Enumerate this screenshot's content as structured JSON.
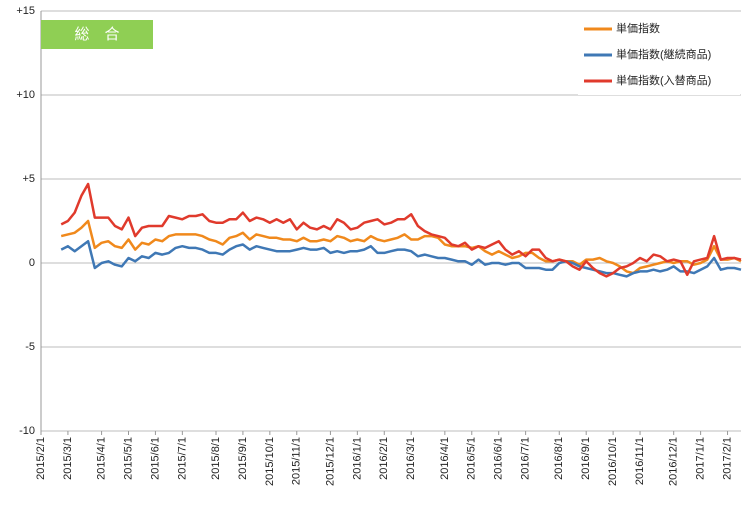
{
  "chart_data": {
    "type": "line",
    "badge": "総　合",
    "categories": [
      "2015/2/1",
      null,
      null,
      null,
      "2015/3/1",
      null,
      null,
      null,
      null,
      "2015/4/1",
      null,
      null,
      null,
      "2015/5/1",
      null,
      null,
      null,
      "2015/6/1",
      null,
      null,
      null,
      "2015/7/1",
      null,
      null,
      null,
      null,
      "2015/8/1",
      null,
      null,
      null,
      "2015/9/1",
      null,
      null,
      null,
      "2015/10/1",
      null,
      null,
      null,
      "2015/11/1",
      null,
      null,
      null,
      null,
      "2015/12/1",
      null,
      null,
      null,
      "2016/1/1",
      null,
      null,
      null,
      "2016/2/1",
      null,
      null,
      null,
      "2016/3/1",
      null,
      null,
      null,
      null,
      "2016/4/1",
      null,
      null,
      null,
      "2016/5/1",
      null,
      null,
      null,
      "2016/6/1",
      null,
      null,
      null,
      "2016/7/1",
      null,
      null,
      null,
      null,
      "2016/8/1",
      null,
      null,
      null,
      "2016/9/1",
      null,
      null,
      null,
      "2016/10/1",
      null,
      null,
      null,
      "2016/11/1",
      null,
      null,
      null,
      null,
      "2016/12/1",
      null,
      null,
      null,
      "2017/1/1",
      null,
      null,
      null,
      "2017/2/1",
      null,
      null
    ],
    "series": [
      {
        "name": "単価指数",
        "color": "#f0891c",
        "values": [
          null,
          null,
          null,
          1.6,
          1.7,
          1.8,
          2.1,
          2.5,
          0.9,
          1.2,
          1.3,
          1.0,
          0.9,
          1.4,
          0.8,
          1.2,
          1.1,
          1.4,
          1.3,
          1.6,
          1.7,
          1.7,
          1.7,
          1.7,
          1.6,
          1.4,
          1.3,
          1.1,
          1.5,
          1.6,
          1.8,
          1.4,
          1.7,
          1.6,
          1.5,
          1.5,
          1.4,
          1.4,
          1.3,
          1.5,
          1.3,
          1.3,
          1.4,
          1.3,
          1.6,
          1.5,
          1.3,
          1.4,
          1.3,
          1.6,
          1.4,
          1.3,
          1.4,
          1.5,
          1.7,
          1.4,
          1.4,
          1.6,
          1.6,
          1.5,
          1.1,
          1.0,
          1.0,
          1.0,
          0.9,
          1.0,
          0.7,
          0.5,
          0.7,
          0.5,
          0.3,
          0.4,
          0.6,
          0.6,
          0.3,
          0.1,
          0.1,
          0.2,
          0.1,
          0.1,
          -0.1,
          0.2,
          0.2,
          0.3,
          0.1,
          0.0,
          -0.2,
          -0.5,
          -0.6,
          -0.3,
          -0.2,
          -0.1,
          0.0,
          0.1,
          0.0,
          0.1,
          0.1,
          -0.1,
          0.0,
          0.2,
          1.0,
          0.2,
          0.2,
          0.3,
          0.1
        ]
      },
      {
        "name": "単価指数(継続商品)",
        "color": "#3f78b5",
        "values": [
          null,
          null,
          null,
          0.8,
          1.0,
          0.7,
          1.0,
          1.3,
          -0.3,
          0.0,
          0.1,
          -0.1,
          -0.2,
          0.3,
          0.1,
          0.4,
          0.3,
          0.6,
          0.5,
          0.6,
          0.9,
          1.0,
          0.9,
          0.9,
          0.8,
          0.6,
          0.6,
          0.5,
          0.8,
          1.0,
          1.1,
          0.8,
          1.0,
          0.9,
          0.8,
          0.7,
          0.7,
          0.7,
          0.8,
          0.9,
          0.8,
          0.8,
          0.9,
          0.6,
          0.7,
          0.6,
          0.7,
          0.7,
          0.8,
          1.0,
          0.6,
          0.6,
          0.7,
          0.8,
          0.8,
          0.7,
          0.4,
          0.5,
          0.4,
          0.3,
          0.3,
          0.2,
          0.1,
          0.1,
          -0.1,
          0.2,
          -0.1,
          0.0,
          0.0,
          -0.1,
          0.0,
          0.0,
          -0.3,
          -0.3,
          -0.3,
          -0.4,
          -0.4,
          0.0,
          0.1,
          0.0,
          -0.2,
          -0.3,
          -0.4,
          -0.5,
          -0.6,
          -0.6,
          -0.7,
          -0.8,
          -0.6,
          -0.5,
          -0.5,
          -0.4,
          -0.5,
          -0.4,
          -0.2,
          -0.5,
          -0.5,
          -0.6,
          -0.4,
          -0.2,
          0.3,
          -0.4,
          -0.3,
          -0.3,
          -0.4
        ]
      },
      {
        "name": "単価指数(入替商品)",
        "color": "#e03a2c",
        "values": [
          null,
          null,
          null,
          2.3,
          2.5,
          3.0,
          4.0,
          4.7,
          2.7,
          2.7,
          2.7,
          2.2,
          2.0,
          2.7,
          1.6,
          2.1,
          2.2,
          2.2,
          2.2,
          2.8,
          2.7,
          2.6,
          2.8,
          2.8,
          2.9,
          2.5,
          2.4,
          2.4,
          2.6,
          2.6,
          3.0,
          2.5,
          2.7,
          2.6,
          2.4,
          2.6,
          2.4,
          2.6,
          2.0,
          2.4,
          2.1,
          2.0,
          2.2,
          2.0,
          2.6,
          2.4,
          2.0,
          2.1,
          2.4,
          2.5,
          2.6,
          2.3,
          2.4,
          2.6,
          2.6,
          2.9,
          2.2,
          1.9,
          1.7,
          1.6,
          1.5,
          1.1,
          1.0,
          1.2,
          0.8,
          1.0,
          0.9,
          1.1,
          1.3,
          0.8,
          0.5,
          0.7,
          0.4,
          0.8,
          0.8,
          0.3,
          0.1,
          0.2,
          0.1,
          -0.2,
          -0.4,
          0.1,
          -0.3,
          -0.6,
          -0.8,
          -0.6,
          -0.3,
          -0.2,
          0.0,
          0.3,
          0.1,
          0.5,
          0.4,
          0.1,
          0.2,
          0.1,
          -0.7,
          0.1,
          0.2,
          0.3,
          1.6,
          0.2,
          0.3,
          0.3,
          0.2
        ]
      }
    ],
    "ylim": [
      -10,
      15
    ],
    "yticks": [
      {
        "value": 15,
        "label": "+15"
      },
      {
        "value": 10,
        "label": "+10"
      },
      {
        "value": 5,
        "label": "+5"
      },
      0,
      -5,
      -10
    ],
    "grid": true,
    "legend": "top-right"
  }
}
